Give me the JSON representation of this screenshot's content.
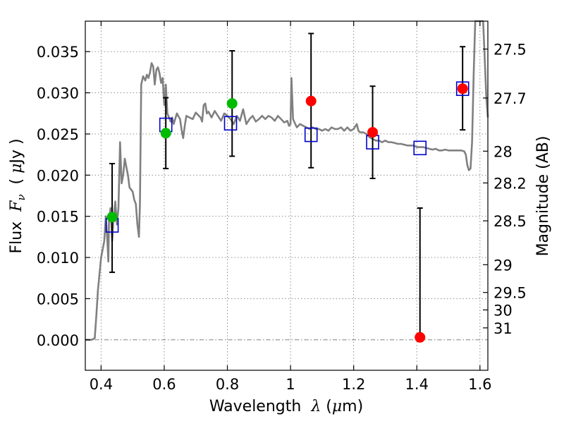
{
  "chart_data": {
    "type": "scatter",
    "xlabel_parts": [
      "Wavelength  ",
      "λ",
      " (",
      "μ",
      "m)"
    ],
    "ylabel_parts": [
      "Flux  ",
      "F",
      "ν",
      "  ( ",
      "μ",
      "Jy )"
    ],
    "y2label": "Magnitude (AB)",
    "xlim": [
      0.35,
      1.625
    ],
    "ylim": [
      -0.0037,
      0.0387
    ],
    "x_ticks": [
      {
        "value": 0.4,
        "label": "0.4"
      },
      {
        "value": 0.6,
        "label": "0.6"
      },
      {
        "value": 0.8,
        "label": "0.8"
      },
      {
        "value": 1.0,
        "label": "1"
      },
      {
        "value": 1.2,
        "label": "1.2"
      },
      {
        "value": 1.4,
        "label": "1.4"
      },
      {
        "value": 1.6,
        "label": "1.6"
      }
    ],
    "y_ticks": [
      {
        "value": 0.0,
        "label": "0.000"
      },
      {
        "value": 0.005,
        "label": "0.005"
      },
      {
        "value": 0.01,
        "label": "0.010"
      },
      {
        "value": 0.015,
        "label": "0.015"
      },
      {
        "value": 0.02,
        "label": "0.020"
      },
      {
        "value": 0.025,
        "label": "0.025"
      },
      {
        "value": 0.03,
        "label": "0.030"
      },
      {
        "value": 0.035,
        "label": "0.035"
      }
    ],
    "mag_ticks": [
      {
        "flux": 0.03531,
        "label": "27.5"
      },
      {
        "flux": 0.02937,
        "label": "27.7"
      },
      {
        "flux": 0.02291,
        "label": "28"
      },
      {
        "flux": 0.01905,
        "label": "28.2"
      },
      {
        "flux": 0.01445,
        "label": "28.5"
      },
      {
        "flux": 0.00912,
        "label": "29"
      },
      {
        "flux": 0.00575,
        "label": "29.5"
      },
      {
        "flux": 0.00363,
        "label": "30"
      },
      {
        "flux": 0.00145,
        "label": "31"
      }
    ],
    "grid": true,
    "model_spectrum": [
      [
        0.35,
        0.0
      ],
      [
        0.37,
        0.0
      ],
      [
        0.38,
        0.0002
      ],
      [
        0.385,
        0.003
      ],
      [
        0.39,
        0.006
      ],
      [
        0.4,
        0.01
      ],
      [
        0.41,
        0.012
      ],
      [
        0.415,
        0.015
      ],
      [
        0.42,
        0.012
      ],
      [
        0.423,
        0.0095
      ],
      [
        0.425,
        0.0145
      ],
      [
        0.43,
        0.016
      ],
      [
        0.435,
        0.012
      ],
      [
        0.44,
        0.015
      ],
      [
        0.445,
        0.0168
      ],
      [
        0.45,
        0.014
      ],
      [
        0.455,
        0.016
      ],
      [
        0.46,
        0.024
      ],
      [
        0.465,
        0.019
      ],
      [
        0.47,
        0.02
      ],
      [
        0.475,
        0.022
      ],
      [
        0.48,
        0.021
      ],
      [
        0.485,
        0.02
      ],
      [
        0.49,
        0.0185
      ],
      [
        0.5,
        0.018
      ],
      [
        0.505,
        0.017
      ],
      [
        0.51,
        0.0165
      ],
      [
        0.515,
        0.014
      ],
      [
        0.52,
        0.0125
      ],
      [
        0.523,
        0.0165
      ],
      [
        0.527,
        0.031
      ],
      [
        0.533,
        0.032
      ],
      [
        0.54,
        0.0315
      ],
      [
        0.545,
        0.0322
      ],
      [
        0.55,
        0.0318
      ],
      [
        0.555,
        0.0325
      ],
      [
        0.56,
        0.0336
      ],
      [
        0.565,
        0.0332
      ],
      [
        0.57,
        0.031
      ],
      [
        0.575,
        0.0328
      ],
      [
        0.58,
        0.0331
      ],
      [
        0.585,
        0.0324
      ],
      [
        0.59,
        0.0312
      ],
      [
        0.595,
        0.0318
      ],
      [
        0.6,
        0.0285
      ],
      [
        0.605,
        0.031
      ],
      [
        0.61,
        0.0275
      ],
      [
        0.62,
        0.0265
      ],
      [
        0.625,
        0.027
      ],
      [
        0.63,
        0.0262
      ],
      [
        0.64,
        0.0275
      ],
      [
        0.65,
        0.0268
      ],
      [
        0.655,
        0.0255
      ],
      [
        0.66,
        0.0245
      ],
      [
        0.665,
        0.026
      ],
      [
        0.67,
        0.0272
      ],
      [
        0.68,
        0.027
      ],
      [
        0.69,
        0.0268
      ],
      [
        0.7,
        0.0276
      ],
      [
        0.71,
        0.0272
      ],
      [
        0.715,
        0.027
      ],
      [
        0.72,
        0.0265
      ],
      [
        0.725,
        0.0285
      ],
      [
        0.73,
        0.0287
      ],
      [
        0.735,
        0.0275
      ],
      [
        0.74,
        0.0277
      ],
      [
        0.75,
        0.027
      ],
      [
        0.76,
        0.0278
      ],
      [
        0.77,
        0.0272
      ],
      [
        0.78,
        0.0266
      ],
      [
        0.79,
        0.0275
      ],
      [
        0.8,
        0.0272
      ],
      [
        0.81,
        0.0268
      ],
      [
        0.82,
        0.0262
      ],
      [
        0.83,
        0.0272
      ],
      [
        0.84,
        0.0266
      ],
      [
        0.85,
        0.028
      ],
      [
        0.86,
        0.0262
      ],
      [
        0.87,
        0.0268
      ],
      [
        0.88,
        0.0272
      ],
      [
        0.89,
        0.0265
      ],
      [
        0.9,
        0.0268
      ],
      [
        0.91,
        0.0272
      ],
      [
        0.92,
        0.0268
      ],
      [
        0.93,
        0.0272
      ],
      [
        0.94,
        0.027
      ],
      [
        0.95,
        0.0266
      ],
      [
        0.96,
        0.0272
      ],
      [
        0.97,
        0.0268
      ],
      [
        0.98,
        0.0264
      ],
      [
        0.99,
        0.0266
      ],
      [
        0.995,
        0.026
      ],
      [
        1.0,
        0.0262
      ],
      [
        1.003,
        0.0318
      ],
      [
        1.008,
        0.0268
      ],
      [
        1.015,
        0.0262
      ],
      [
        1.02,
        0.0258
      ],
      [
        1.03,
        0.0262
      ],
      [
        1.04,
        0.026
      ],
      [
        1.05,
        0.0258
      ],
      [
        1.06,
        0.0256
      ],
      [
        1.07,
        0.0258
      ],
      [
        1.08,
        0.0256
      ],
      [
        1.09,
        0.0256
      ],
      [
        1.1,
        0.0254
      ],
      [
        1.11,
        0.0256
      ],
      [
        1.12,
        0.0254
      ],
      [
        1.13,
        0.0258
      ],
      [
        1.14,
        0.0256
      ],
      [
        1.15,
        0.0256
      ],
      [
        1.16,
        0.0258
      ],
      [
        1.17,
        0.0254
      ],
      [
        1.18,
        0.0258
      ],
      [
        1.19,
        0.0254
      ],
      [
        1.2,
        0.0256
      ],
      [
        1.21,
        0.0262
      ],
      [
        1.215,
        0.0254
      ],
      [
        1.22,
        0.0252
      ],
      [
        1.23,
        0.0252
      ],
      [
        1.24,
        0.025
      ],
      [
        1.25,
        0.0246
      ],
      [
        1.26,
        0.0244
      ],
      [
        1.27,
        0.0242
      ],
      [
        1.28,
        0.0242
      ],
      [
        1.29,
        0.024
      ],
      [
        1.3,
        0.0242
      ],
      [
        1.31,
        0.024
      ],
      [
        1.32,
        0.024
      ],
      [
        1.33,
        0.0239
      ],
      [
        1.34,
        0.0238
      ],
      [
        1.35,
        0.0238
      ],
      [
        1.36,
        0.0237
      ],
      [
        1.37,
        0.0236
      ],
      [
        1.38,
        0.0236
      ],
      [
        1.39,
        0.0236
      ],
      [
        1.4,
        0.0234
      ],
      [
        1.42,
        0.0234
      ],
      [
        1.44,
        0.0232
      ],
      [
        1.45,
        0.0231
      ],
      [
        1.46,
        0.0232
      ],
      [
        1.47,
        0.023
      ],
      [
        1.48,
        0.023
      ],
      [
        1.49,
        0.0231
      ],
      [
        1.5,
        0.023
      ],
      [
        1.52,
        0.023
      ],
      [
        1.54,
        0.023
      ],
      [
        1.55,
        0.0229
      ],
      [
        1.555,
        0.0225
      ],
      [
        1.56,
        0.0212
      ],
      [
        1.565,
        0.0206
      ],
      [
        1.57,
        0.0208
      ],
      [
        1.575,
        0.024
      ],
      [
        1.58,
        0.032
      ],
      [
        1.585,
        0.0387
      ],
      [
        1.6,
        0.0387
      ],
      [
        1.61,
        0.0387
      ],
      [
        1.62,
        0.0295
      ],
      [
        1.625,
        0.027
      ]
    ],
    "model_points": [
      {
        "x": 0.435,
        "y": 0.0139
      },
      {
        "x": 0.605,
        "y": 0.0261
      },
      {
        "x": 0.81,
        "y": 0.0263
      },
      {
        "x": 1.065,
        "y": 0.0249
      },
      {
        "x": 1.26,
        "y": 0.024
      },
      {
        "x": 1.41,
        "y": 0.0233
      },
      {
        "x": 1.545,
        "y": 0.0305
      }
    ],
    "observed_points": [
      {
        "x": 0.435,
        "y": 0.0149,
        "err_low": 0.0067,
        "err_high": 0.0065,
        "detected": true
      },
      {
        "x": 0.605,
        "y": 0.0251,
        "err_low": 0.0043,
        "err_high": 0.0043,
        "detected": true
      },
      {
        "x": 0.815,
        "y": 0.0287,
        "err_low": 0.0064,
        "err_high": 0.0064,
        "detected": true
      },
      {
        "x": 1.065,
        "y": 0.029,
        "err_low": 0.0081,
        "err_high": 0.0082,
        "detected": false
      },
      {
        "x": 1.26,
        "y": 0.0252,
        "err_low": 0.0056,
        "err_high": 0.0056,
        "detected": false
      },
      {
        "x": 1.41,
        "y": 0.0003,
        "err_low": 0.0003,
        "err_high": 0.0157,
        "detected": false
      },
      {
        "x": 1.545,
        "y": 0.0305,
        "err_low": 0.005,
        "err_high": 0.0051,
        "detected": false
      }
    ],
    "colors": {
      "spectrum": "#808080",
      "model_box": "#0000cc",
      "detected": "#00bb00",
      "nondetected": "#ff0000",
      "errorbar": "#000000",
      "grid": "#808080",
      "zero_line": "#888888"
    }
  }
}
